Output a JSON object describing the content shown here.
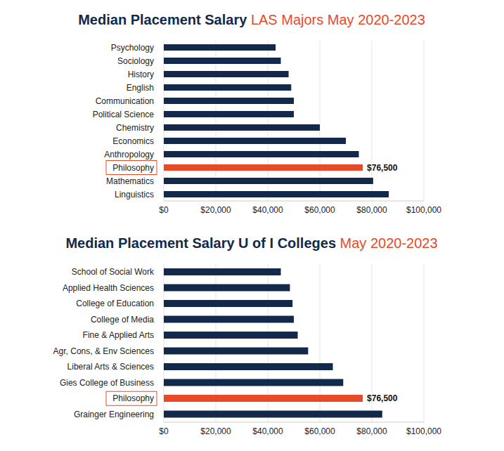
{
  "chart_data": [
    {
      "type": "bar",
      "title": "Median Placement Salary",
      "subtitle": "LAS Majors May 2020-2023",
      "orientation": "horizontal",
      "categories": [
        "Psychology",
        "Sociology",
        "History",
        "English",
        "Communication",
        "Political Science",
        "Chemistry",
        "Economics",
        "Anthropology",
        "Philosophy",
        "Mathematics",
        "Linguistics"
      ],
      "values": [
        43000,
        45000,
        48000,
        49000,
        50000,
        50000,
        60000,
        70000,
        75000,
        76500,
        80500,
        86500
      ],
      "value_labels": [
        null,
        null,
        null,
        null,
        null,
        null,
        null,
        null,
        null,
        "$76,500",
        null,
        null
      ],
      "colors": [
        "#13294b",
        "#13294b",
        "#13294b",
        "#13294b",
        "#13294b",
        "#13294b",
        "#13294b",
        "#13294b",
        "#13294b",
        "#e84a27",
        "#13294b",
        "#13294b"
      ],
      "xlim": [
        0,
        100000
      ],
      "xticks": [
        {
          "value": 0,
          "label": "$0"
        },
        {
          "value": 20000,
          "label": "$20,000"
        },
        {
          "value": 40000,
          "label": "$40,000"
        },
        {
          "value": 60000,
          "label": "$60,000"
        },
        {
          "value": 80000,
          "label": "$80,000"
        },
        {
          "value": 100000,
          "label": "$100,000"
        }
      ],
      "grid": true
    },
    {
      "type": "bar",
      "title": "Median Placement Salary U of I Colleges",
      "subtitle": "May 2020-2023",
      "orientation": "horizontal",
      "categories": [
        "School of Social Work",
        "Applied Health Sciences",
        "College of Education",
        "College of Media",
        "Fine & Applied Arts",
        "Agr, Cons, & Env Sciences",
        "Liberal Arts & Sciences",
        "Gies College of Business",
        "Philosophy",
        "Grainger Engineering"
      ],
      "values": [
        45000,
        48500,
        49500,
        50000,
        51500,
        55500,
        65000,
        69000,
        76500,
        84000
      ],
      "value_labels": [
        null,
        null,
        null,
        null,
        null,
        null,
        null,
        null,
        "$76,500",
        null
      ],
      "colors": [
        "#13294b",
        "#13294b",
        "#13294b",
        "#13294b",
        "#13294b",
        "#13294b",
        "#13294b",
        "#13294b",
        "#e84a27",
        "#13294b"
      ],
      "xlim": [
        0,
        100000
      ],
      "xticks": [
        {
          "value": 0,
          "label": "$0"
        },
        {
          "value": 20000,
          "label": "$20,000"
        },
        {
          "value": 40000,
          "label": "$40,000"
        },
        {
          "value": 60000,
          "label": "$60,000"
        },
        {
          "value": 80000,
          "label": "$80,000"
        },
        {
          "value": 100000,
          "label": "$100,000"
        }
      ],
      "grid": true
    }
  ]
}
